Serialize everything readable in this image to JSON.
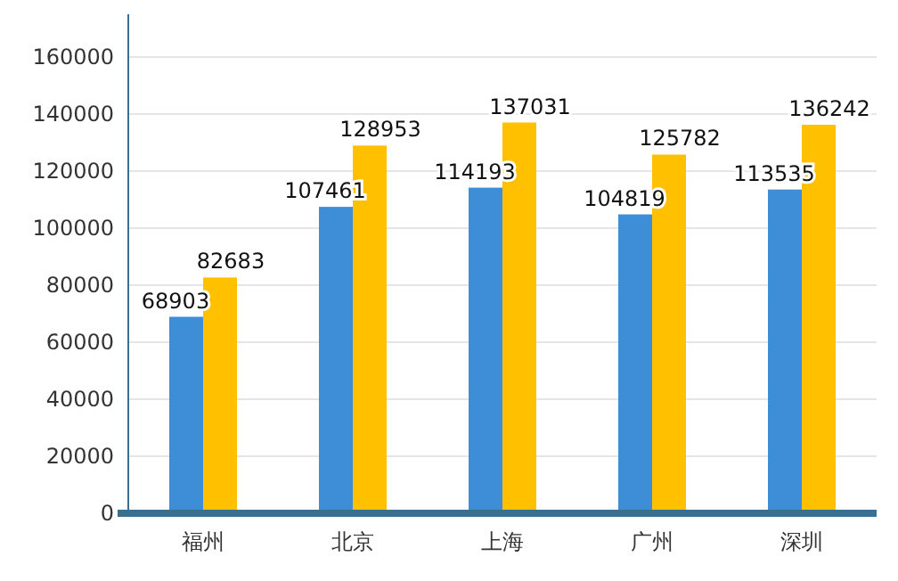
{
  "chart_data": {
    "type": "bar",
    "categories": [
      "福州",
      "北京",
      "上海",
      "广州",
      "深圳"
    ],
    "series": [
      {
        "color": "#3d8ed6",
        "values": [
          68903,
          107461,
          114193,
          104819,
          113535
        ]
      },
      {
        "color": "#ffc000",
        "values": [
          82683,
          128953,
          137031,
          125782,
          136242
        ]
      }
    ],
    "ylim": [
      0,
      175000
    ],
    "yticks": [
      0,
      20000,
      40000,
      60000,
      80000,
      100000,
      120000,
      140000,
      160000
    ],
    "grid": "y",
    "data_labels": true
  }
}
